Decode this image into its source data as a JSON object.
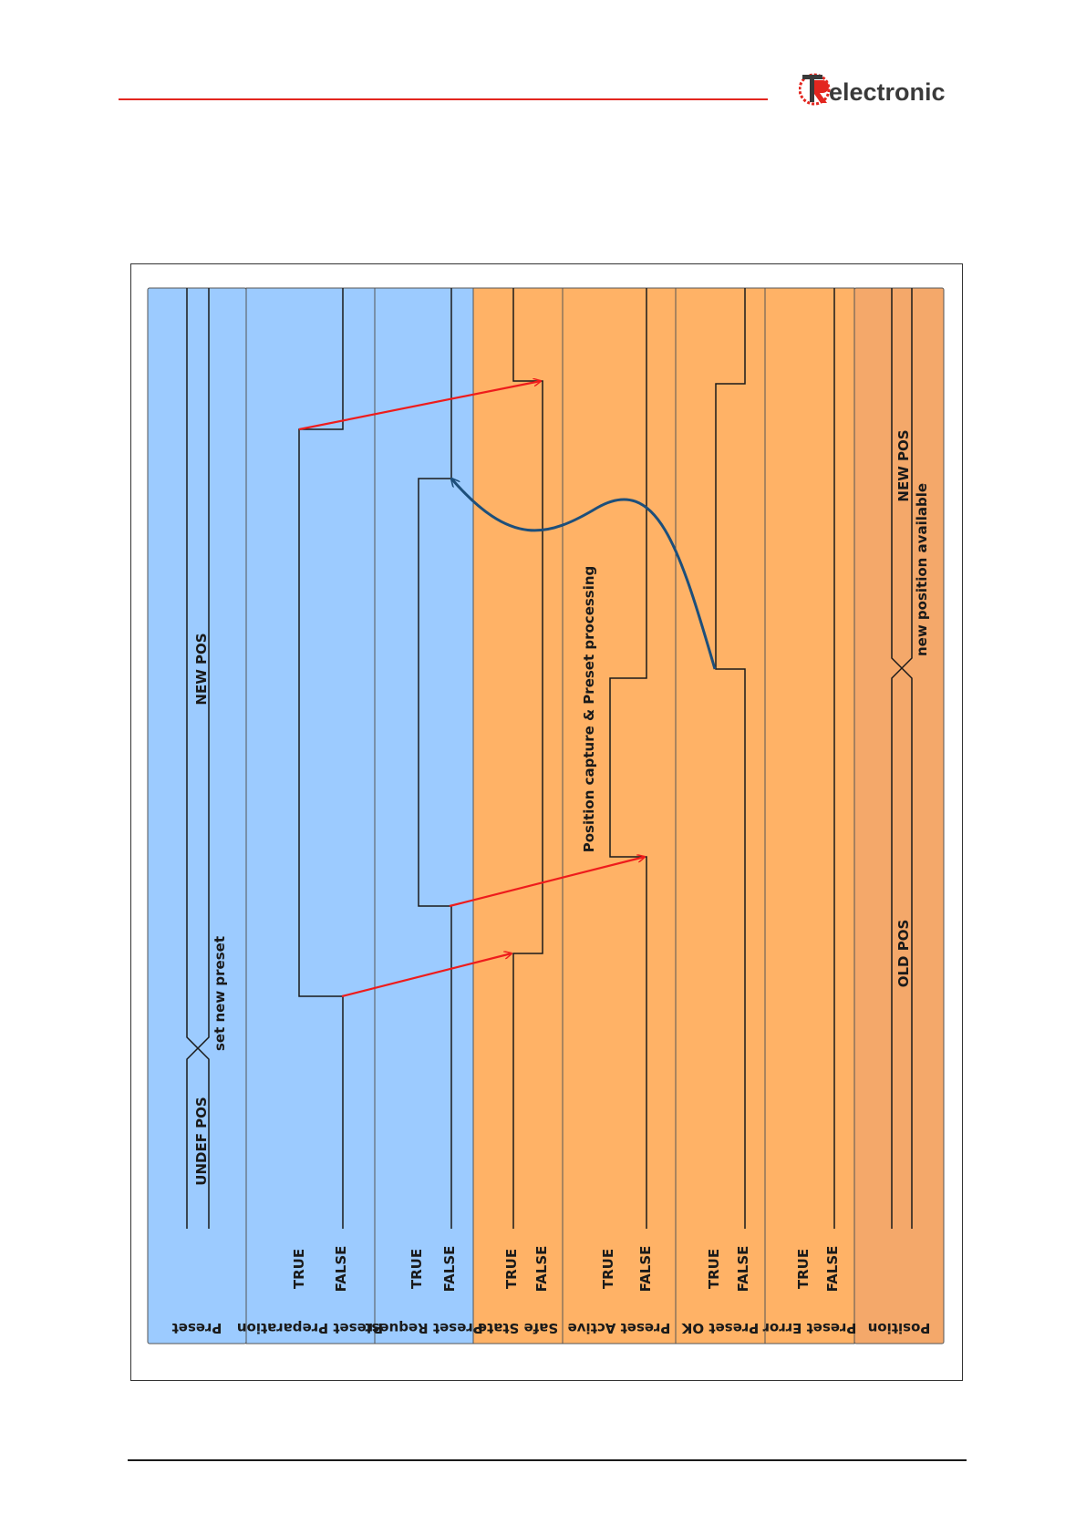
{
  "header": {
    "brand": "electronic"
  },
  "colors": {
    "accent_red": "#e3261f",
    "lane_blue": "#9ccbff",
    "lane_orange": "#ffb266",
    "lane_position": "#f4a86a",
    "arrow_red": "#ee1c1c",
    "arrow_blue": "#1d4f7b"
  },
  "diagram": {
    "lanes": [
      {
        "name": "Preset",
        "color": "blue"
      },
      {
        "name": "Preset Preparation",
        "color": "blue",
        "true": "TRUE",
        "false": "FALSE"
      },
      {
        "name": "Preset Request",
        "color": "blue",
        "true": "TRUE",
        "false": "FALSE"
      },
      {
        "name": "Safe State",
        "color": "orange",
        "true": "TRUE",
        "false": "FALSE"
      },
      {
        "name": "Preset  Active",
        "color": "orange",
        "true": "TRUE",
        "false": "FALSE"
      },
      {
        "name": "Preset OK",
        "color": "orange",
        "true": "TRUE",
        "false": "FALSE"
      },
      {
        "name": "Preset Error",
        "color": "orange",
        "true": "TRUE",
        "false": "FALSE"
      },
      {
        "name": "Position",
        "color": "position"
      }
    ],
    "preset_labels": {
      "undef": "UNDEF  POS",
      "set_new": "set new preset",
      "new_pos": "NEW  POS"
    },
    "position_labels": {
      "old": "OLD  POS",
      "new": "NEW  POS",
      "available": "new position available"
    },
    "processing_label": "Position capture & Preset processing"
  }
}
